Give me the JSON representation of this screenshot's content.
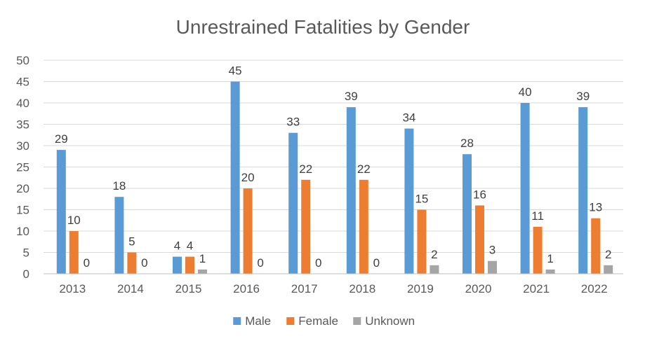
{
  "chart_data": {
    "type": "bar",
    "title": "Unrestrained Fatalities by Gender",
    "categories": [
      "2013",
      "2014",
      "2015",
      "2016",
      "2017",
      "2018",
      "2019",
      "2020",
      "2021",
      "2022"
    ],
    "series": [
      {
        "name": "Male",
        "color": "#5b9bd5",
        "values": [
          29,
          18,
          4,
          45,
          33,
          39,
          34,
          28,
          40,
          39
        ]
      },
      {
        "name": "Female",
        "color": "#ed7d31",
        "values": [
          10,
          5,
          4,
          20,
          22,
          22,
          15,
          16,
          11,
          13
        ]
      },
      {
        "name": "Unknown",
        "color": "#a5a5a5",
        "values": [
          0,
          0,
          1,
          0,
          0,
          0,
          2,
          3,
          1,
          2
        ]
      }
    ],
    "ylim": [
      0,
      50
    ],
    "yticks": [
      0,
      5,
      10,
      15,
      20,
      25,
      30,
      35,
      40,
      45,
      50
    ],
    "grid": true,
    "legend": "bottom",
    "data_labels": true
  }
}
